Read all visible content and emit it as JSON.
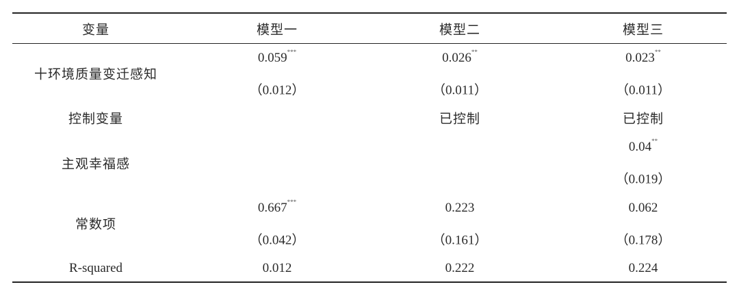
{
  "table": {
    "headers": [
      "变量",
      "模型一",
      "模型二",
      "模型三"
    ],
    "rows": [
      {
        "label": "十环境质量变迁感知",
        "values": [
          {
            "coef": "0.059",
            "stars": "***",
            "se": "（0.012）"
          },
          {
            "coef": "0.026",
            "stars": "**",
            "se": "（0.011）"
          },
          {
            "coef": "0.023",
            "stars": "**",
            "se": "（0.011）"
          }
        ]
      },
      {
        "label": "控制变量",
        "values": [
          "",
          "已控制",
          "已控制"
        ]
      },
      {
        "label": "主观幸福感",
        "values": [
          {
            "coef": "",
            "stars": "",
            "se": ""
          },
          {
            "coef": "",
            "stars": "",
            "se": ""
          },
          {
            "coef": "0.04",
            "stars": "**",
            "se": "（0.019）"
          }
        ]
      },
      {
        "label": "常数项",
        "values": [
          {
            "coef": "0.667",
            "stars": "***",
            "se": "（0.042）"
          },
          {
            "coef": "0.223",
            "stars": "",
            "se": "（0.161）"
          },
          {
            "coef": "0.062",
            "stars": "",
            "se": "（0.178）"
          }
        ]
      },
      {
        "label": "R-squared",
        "values": [
          "0.012",
          "0.222",
          "0.224"
        ]
      }
    ]
  }
}
